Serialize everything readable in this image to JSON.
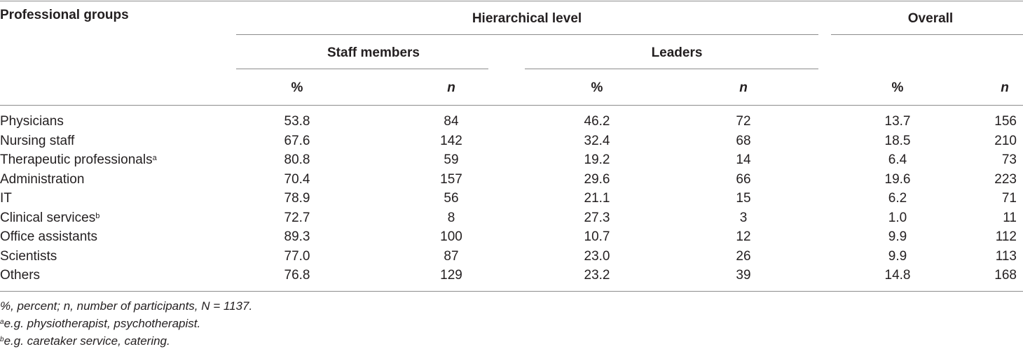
{
  "table": {
    "header": {
      "professional_groups": "Professional groups",
      "hierarchical_level": "Hierarchical level",
      "overall": "Overall",
      "staff_members": "Staff members",
      "leaders": "Leaders",
      "percent": "%",
      "n": "n"
    },
    "rows": [
      {
        "group": "Physicians",
        "sup": "",
        "staff_pct": "53.8",
        "staff_n": "84",
        "leaders_pct": "46.2",
        "leaders_n": "72",
        "overall_pct": "13.7",
        "overall_n": "156"
      },
      {
        "group": "Nursing staff",
        "sup": "",
        "staff_pct": "67.6",
        "staff_n": "142",
        "leaders_pct": "32.4",
        "leaders_n": "68",
        "overall_pct": "18.5",
        "overall_n": "210"
      },
      {
        "group": "Therapeutic professionals",
        "sup": "a",
        "staff_pct": "80.8",
        "staff_n": "59",
        "leaders_pct": "19.2",
        "leaders_n": "14",
        "overall_pct": "6.4",
        "overall_n": "73"
      },
      {
        "group": "Administration",
        "sup": "",
        "staff_pct": "70.4",
        "staff_n": "157",
        "leaders_pct": "29.6",
        "leaders_n": "66",
        "overall_pct": "19.6",
        "overall_n": "223"
      },
      {
        "group": "IT",
        "sup": "",
        "staff_pct": "78.9",
        "staff_n": "56",
        "leaders_pct": "21.1",
        "leaders_n": "15",
        "overall_pct": "6.2",
        "overall_n": "71"
      },
      {
        "group": "Clinical services",
        "sup": "b",
        "staff_pct": "72.7",
        "staff_n": "8",
        "leaders_pct": "27.3",
        "leaders_n": "3",
        "overall_pct": "1.0",
        "overall_n": "11"
      },
      {
        "group": "Office assistants",
        "sup": "",
        "staff_pct": "89.3",
        "staff_n": "100",
        "leaders_pct": "10.7",
        "leaders_n": "12",
        "overall_pct": "9.9",
        "overall_n": "112"
      },
      {
        "group": "Scientists",
        "sup": "",
        "staff_pct": "77.0",
        "staff_n": "87",
        "leaders_pct": "23.0",
        "leaders_n": "26",
        "overall_pct": "9.9",
        "overall_n": "113"
      },
      {
        "group": "Others",
        "sup": "",
        "staff_pct": "76.8",
        "staff_n": "129",
        "leaders_pct": "23.2",
        "leaders_n": "39",
        "overall_pct": "14.8",
        "overall_n": "168"
      }
    ]
  },
  "footnotes": {
    "abbreviations": "%, percent; n, number of participants, N = 1137.",
    "a_marker": "a",
    "a_text": "e.g. physiotherapist, psychotherapist.",
    "b_marker": "b",
    "b_text": "e.g. caretaker service, catering."
  }
}
